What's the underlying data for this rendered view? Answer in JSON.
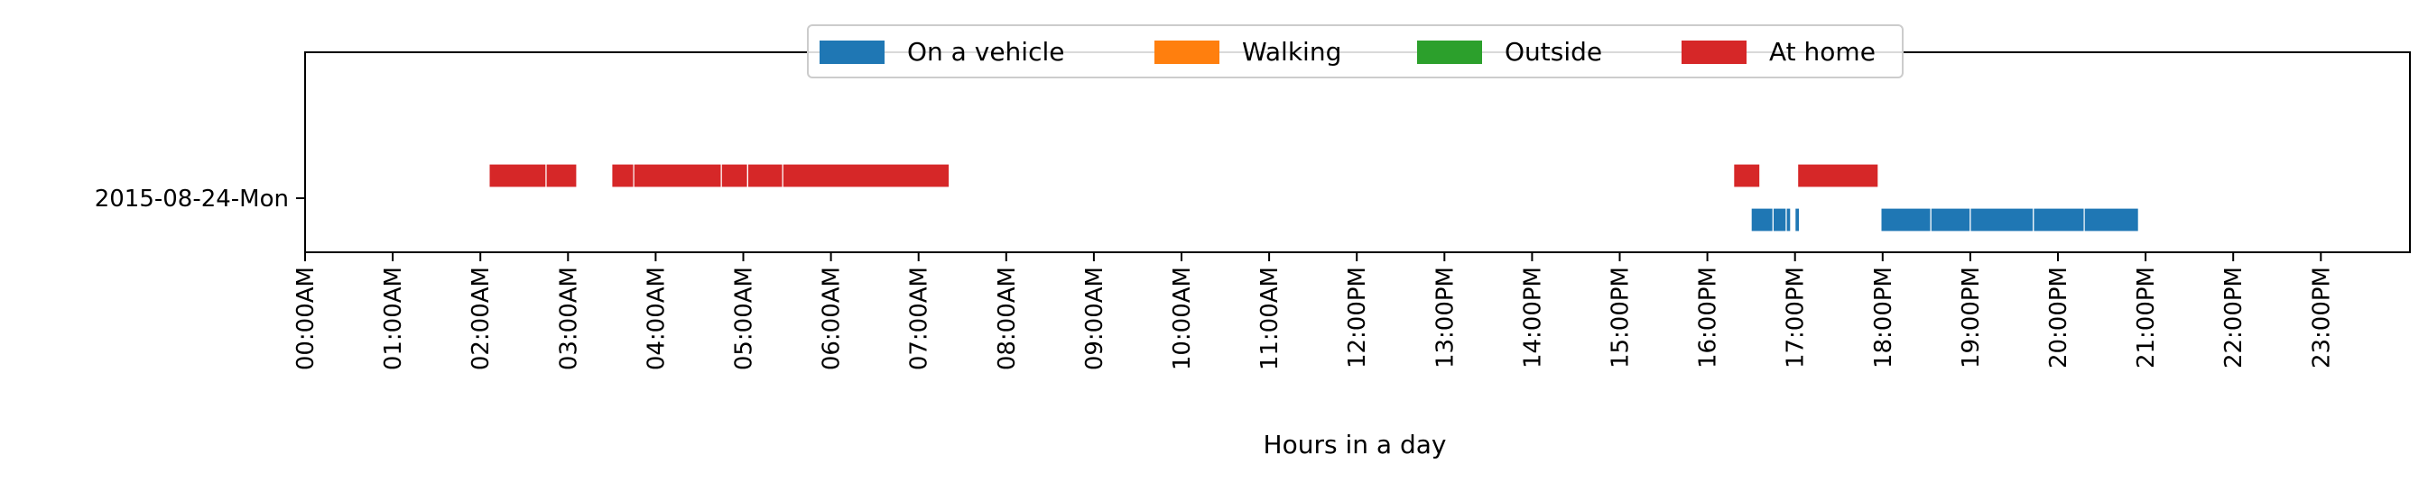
{
  "chart_data": {
    "type": "timeline",
    "title": "",
    "xlabel": "Hours in a day",
    "ylabel": "",
    "x_unit": "hours",
    "xlim": [
      0,
      24
    ],
    "grid": false,
    "legend_placement": "top-center",
    "categories": [
      "2015-08-24-Mon"
    ],
    "x_tick_labels": [
      "00:00AM",
      "01:00AM",
      "02:00AM",
      "03:00AM",
      "04:00AM",
      "05:00AM",
      "06:00AM",
      "07:00AM",
      "08:00AM",
      "09:00AM",
      "10:00AM",
      "11:00AM",
      "12:00PM",
      "13:00PM",
      "14:00PM",
      "15:00PM",
      "16:00PM",
      "17:00PM",
      "18:00PM",
      "19:00PM",
      "20:00PM",
      "21:00PM",
      "22:00PM",
      "23:00PM"
    ],
    "legend": [
      {
        "name": "On a vehicle",
        "color": "#1f77b4"
      },
      {
        "name": "Walking",
        "color": "#ff7f0e"
      },
      {
        "name": "Outside",
        "color": "#2ca02c"
      },
      {
        "name": "At home",
        "color": "#d62728"
      }
    ],
    "series": [
      {
        "name": "At home",
        "color": "#d62728",
        "lane": "upper",
        "intervals": [
          [
            2.1,
            2.75
          ],
          [
            2.75,
            3.1
          ],
          [
            3.5,
            3.75
          ],
          [
            3.75,
            4.75
          ],
          [
            4.75,
            5.05
          ],
          [
            5.05,
            5.45
          ],
          [
            5.45,
            7.35
          ],
          [
            16.3,
            16.6
          ],
          [
            17.03,
            17.95
          ]
        ]
      },
      {
        "name": "On a vehicle",
        "color": "#1f77b4",
        "lane": "lower",
        "intervals": [
          [
            16.5,
            16.75
          ],
          [
            16.75,
            16.9
          ],
          [
            16.9,
            16.95
          ],
          [
            17.0,
            17.05
          ],
          [
            17.98,
            18.55
          ],
          [
            18.55,
            19.0
          ],
          [
            19.0,
            19.72
          ],
          [
            19.72,
            20.3
          ],
          [
            20.3,
            20.92
          ]
        ]
      }
    ]
  }
}
